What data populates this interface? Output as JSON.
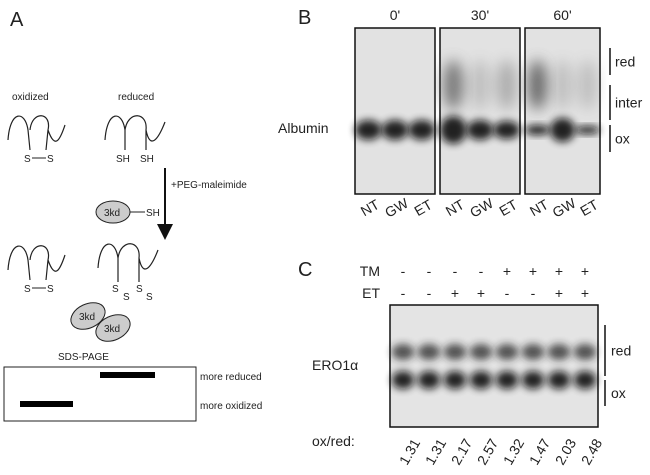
{
  "panel_a": {
    "label": "A",
    "oxidized": "oxidized",
    "reduced": "reduced",
    "oxidized_thiols": [
      "S",
      "S"
    ],
    "reduced_thiols": [
      "SH",
      "SH"
    ],
    "reagent": "+PEG-maleimide",
    "tag": "3kd",
    "tag_thiol": "SH",
    "product_oxidized_thiols": [
      "S",
      "S"
    ],
    "product_reduced_thiols": [
      "S",
      "S",
      "S",
      "S"
    ],
    "product_tags": [
      "3kd",
      "3kd"
    ],
    "gel_title": "SDS-PAGE",
    "gel_bands": [
      "more reduced",
      "more oxidized"
    ]
  },
  "panel_b": {
    "label": "B",
    "timepoints": [
      "0'",
      "30'",
      "60'"
    ],
    "protein": "Albumin",
    "bracket_labels": [
      "red",
      "inter",
      "ox"
    ],
    "lanes": [
      "NT",
      "GW",
      "ET"
    ]
  },
  "panel_c": {
    "label": "C",
    "rows": [
      {
        "name": "TM",
        "signs": [
          "-",
          "-",
          "-",
          "-",
          "+",
          "+",
          "+",
          "+"
        ]
      },
      {
        "name": "ET",
        "signs": [
          "-",
          "-",
          "+",
          "+",
          "-",
          "-",
          "+",
          "+"
        ]
      }
    ],
    "protein": "ERO1α",
    "bracket_labels": [
      "red",
      "ox"
    ],
    "ratio_label": "ox/red:",
    "ratios": [
      "1.31",
      "1.31",
      "2.17",
      "2.57",
      "1.32",
      "1.47",
      "2.03",
      "2.48"
    ]
  }
}
